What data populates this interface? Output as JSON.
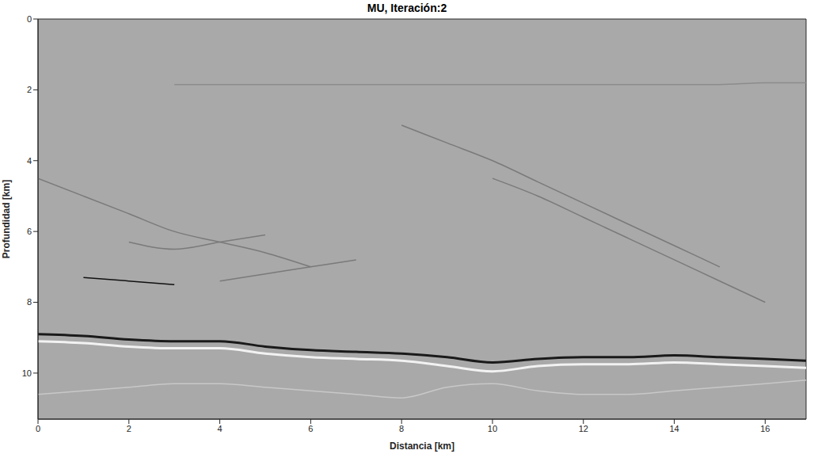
{
  "chart_data": {
    "type": "line",
    "title": "MU, Iteración:2",
    "x_label": "Distancia [km]",
    "y_label": "Profundidad [km]",
    "x": [
      0,
      1,
      2,
      3,
      4,
      5,
      6,
      7,
      8,
      9,
      10,
      11,
      12,
      13,
      14,
      15,
      16,
      16.9
    ],
    "series": [
      {
        "color": "#1a1a1a",
        "values": [
          8.9,
          8.95,
          9.05,
          9.1,
          9.1,
          9.25,
          9.35,
          9.4,
          9.45,
          9.55,
          9.7,
          9.6,
          9.55,
          9.55,
          9.5,
          9.55,
          9.6,
          9.65
        ]
      },
      {
        "color": "#f2f2f2",
        "values": [
          9.1,
          9.15,
          9.25,
          9.3,
          9.3,
          9.45,
          9.55,
          9.6,
          9.65,
          9.8,
          9.95,
          9.8,
          9.75,
          9.75,
          9.7,
          9.75,
          9.8,
          9.85
        ]
      },
      {
        "color": "#8c8c8c",
        "values": [
          null,
          null,
          null,
          1.85,
          1.85,
          1.85,
          1.85,
          1.85,
          1.85,
          1.85,
          1.85,
          1.85,
          1.85,
          1.85,
          1.85,
          1.85,
          1.8,
          1.8
        ]
      },
      {
        "color": "#111111",
        "values": [
          null,
          7.3,
          7.4,
          7.5,
          null,
          null,
          null,
          null,
          null,
          null,
          null,
          null,
          null,
          null,
          null,
          null,
          null,
          null
        ]
      },
      {
        "color": "#7a7a7a",
        "values": [
          4.5,
          5.0,
          5.5,
          6.0,
          6.3,
          6.6,
          7.0,
          null,
          null,
          null,
          null,
          null,
          null,
          null,
          null,
          null,
          null,
          null
        ]
      },
      {
        "color": "#7a7a7a",
        "values": [
          null,
          null,
          6.3,
          6.5,
          6.3,
          6.1,
          null,
          null,
          null,
          null,
          null,
          null,
          null,
          null,
          null,
          null,
          null,
          null
        ]
      },
      {
        "color": "#7a7a7a",
        "values": [
          null,
          null,
          null,
          null,
          7.4,
          7.2,
          7.0,
          6.8,
          null,
          null,
          null,
          null,
          null,
          null,
          null,
          null,
          null,
          null
        ]
      },
      {
        "color": "#7a7a7a",
        "values": [
          null,
          null,
          null,
          null,
          null,
          null,
          null,
          null,
          3.0,
          3.5,
          4.0,
          4.6,
          5.2,
          5.8,
          6.4,
          7.0,
          null,
          null
        ]
      },
      {
        "color": "#7a7a7a",
        "values": [
          null,
          null,
          null,
          null,
          null,
          null,
          null,
          null,
          null,
          null,
          4.5,
          5.0,
          5.6,
          6.2,
          6.8,
          7.4,
          8.0,
          null
        ]
      },
      {
        "color": "#c8c8c8",
        "values": [
          10.6,
          10.5,
          10.4,
          10.3,
          10.3,
          10.4,
          10.5,
          10.6,
          10.7,
          10.4,
          10.3,
          10.5,
          10.6,
          10.6,
          10.5,
          10.4,
          10.3,
          10.2
        ]
      }
    ],
    "xlim": [
      0,
      16.9
    ],
    "ylim": [
      0,
      11.3
    ],
    "xticks": [
      0,
      2,
      4,
      6,
      8,
      10,
      12,
      14,
      16
    ],
    "yticks": [
      0,
      2,
      4,
      6,
      8,
      10
    ],
    "grid": false
  }
}
